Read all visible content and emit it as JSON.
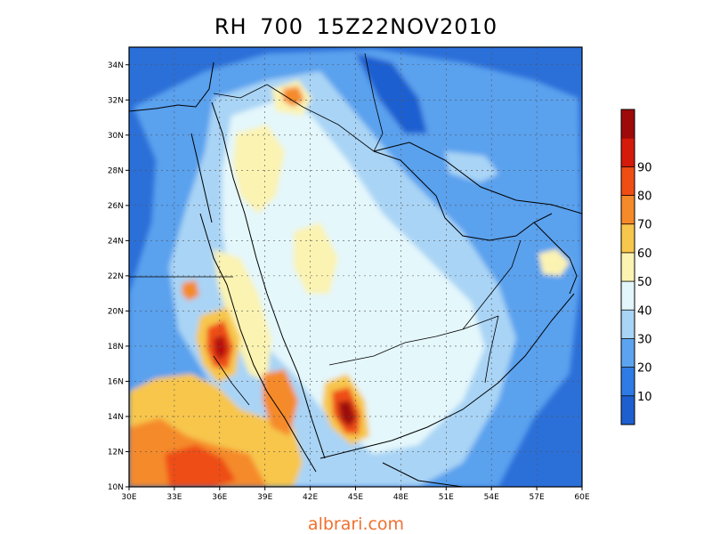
{
  "title": "RH 700 15Z22NOV2010",
  "watermark": "albrari.com",
  "map": {
    "lon_range": [
      30,
      60
    ],
    "lat_range": [
      10,
      35
    ],
    "x_ticks": [
      "30E",
      "33E",
      "36E",
      "39E",
      "42E",
      "45E",
      "48E",
      "51E",
      "54E",
      "57E",
      "60E"
    ],
    "y_ticks": [
      "10N",
      "12N",
      "14N",
      "16N",
      "18N",
      "20N",
      "22N",
      "24N",
      "26N",
      "28N",
      "30N",
      "32N",
      "34N"
    ],
    "gridlines": true
  },
  "colorbar": {
    "labels": [
      "10",
      "20",
      "30",
      "40",
      "50",
      "60",
      "70",
      "80",
      "90"
    ],
    "colors": [
      "#1e5fd0",
      "#2f7be6",
      "#5ca4ef",
      "#a8d4f6",
      "#e2f6fb",
      "#fbf3b2",
      "#f7c64c",
      "#f58a2a",
      "#ef4d14",
      "#d41a0a",
      "#9e0a0a"
    ]
  },
  "palette": {
    "background": "#2b6fd8",
    "mid_blue": "#5aa1ee",
    "light_blue": "#a9d4f5",
    "pale": "#e4f7fb",
    "yellow": "#fbf3b2",
    "orange": "#f7c64c",
    "dark_orange": "#f58a2a",
    "red": "#d41a0a",
    "dark_red": "#9e0a0a"
  }
}
